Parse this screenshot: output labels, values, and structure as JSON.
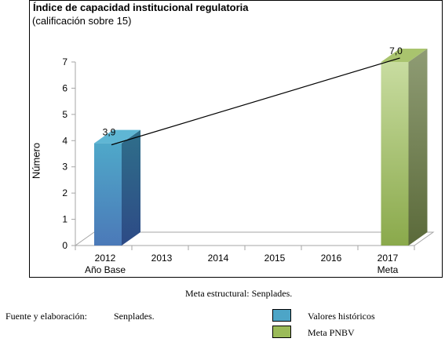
{
  "chart_data": {
    "type": "bar",
    "title": "Índice de capacidad institucional regulatoria",
    "subtitle": "(calificación sobre 15)",
    "ylabel": "Número",
    "ylim": [
      0,
      7
    ],
    "yticks": [
      "0",
      "1",
      "2",
      "3",
      "4",
      "5",
      "6",
      "7"
    ],
    "categories": [
      "2012",
      "2013",
      "2014",
      "2015",
      "2016",
      "2017"
    ],
    "category_sublabels": [
      "Año Base",
      "",
      "",
      "",
      "",
      "Meta"
    ],
    "bars": [
      {
        "category": "2012",
        "value": 3.9,
        "label": "3,9",
        "series": "Valores históricos",
        "color": "#4b9fc8"
      },
      {
        "category": "2017",
        "value": 7.0,
        "label": "7,0",
        "series": "Meta PNBV",
        "color": "#b8cf86"
      }
    ],
    "trend_line": {
      "from": "2012",
      "to": "2017"
    }
  },
  "footer": {
    "meta": "Meta estructural: Senplades.",
    "source_label": "Fuente y elaboración:",
    "source_value": "Senplades."
  },
  "legend": [
    {
      "label": "Valores históricos",
      "color": "#4da5c7"
    },
    {
      "label": "Meta PNBV",
      "color": "#9bbb59"
    }
  ]
}
